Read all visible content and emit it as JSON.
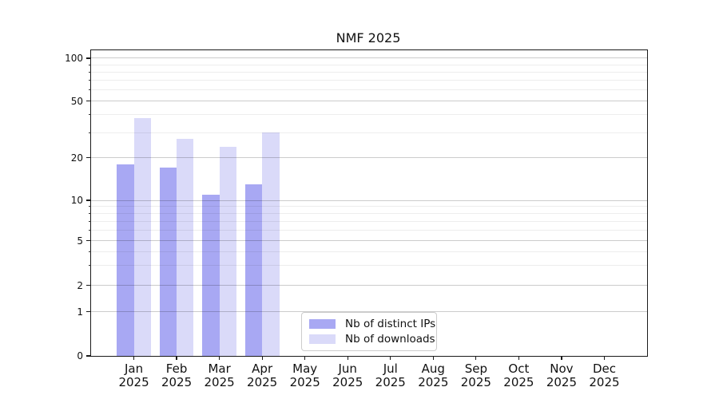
{
  "chart_data": {
    "type": "bar",
    "title": "NMF 2025",
    "categories": [
      "Jan",
      "Feb",
      "Mar",
      "Apr",
      "May",
      "Jun",
      "Jul",
      "Aug",
      "Sep",
      "Oct",
      "Nov",
      "Dec"
    ],
    "category_year": "2025",
    "series": [
      {
        "name": "Nb of distinct IPs",
        "color": "#a8a8f3",
        "values": [
          18,
          17,
          11,
          13,
          null,
          null,
          null,
          null,
          null,
          null,
          null,
          null
        ]
      },
      {
        "name": "Nb of downloads",
        "color": "#dadaf9",
        "values": [
          38,
          27,
          24,
          30,
          null,
          null,
          null,
          null,
          null,
          null,
          null,
          null
        ]
      }
    ],
    "xlabel": "",
    "ylabel": "",
    "yscale": "log-like (symlog/asinh), linear below 1",
    "ylim": [
      0,
      110
    ],
    "y_major_ticks": [
      0,
      1,
      2,
      5,
      10,
      20,
      50,
      100
    ],
    "y_minor_ticks": [
      3,
      4,
      6,
      7,
      8,
      9,
      30,
      40,
      60,
      70,
      80,
      90
    ],
    "grid": "both, drawn over bars",
    "legend_position": "lower center"
  },
  "colors": {
    "ips_bar": "#a8a8f3",
    "downloads_bar": "#dadaf9",
    "axis": "#1a1a1a",
    "major_grid": "#cccccc",
    "minor_grid": "#ededed",
    "legend_border": "#cccccc"
  }
}
